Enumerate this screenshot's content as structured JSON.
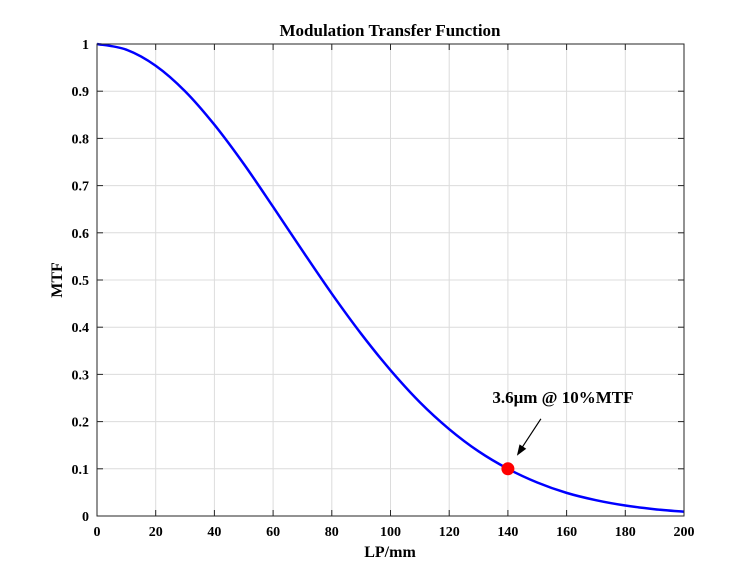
{
  "chart_data": {
    "type": "line",
    "title": "Modulation Transfer Function",
    "xlabel": "LP/mm",
    "ylabel": "MTF",
    "xlim": [
      0,
      200
    ],
    "ylim": [
      0,
      1
    ],
    "grid": true,
    "xticks": [
      0,
      20,
      40,
      60,
      80,
      100,
      120,
      140,
      160,
      180,
      200
    ],
    "yticks": [
      0,
      0.1,
      0.2,
      0.3,
      0.4,
      0.5,
      0.6,
      0.7,
      0.8,
      0.9,
      1
    ],
    "series": [
      {
        "name": "MTF",
        "color": "#0000ff",
        "x": [
          0,
          10,
          20,
          30,
          40,
          50,
          60,
          70,
          80,
          90,
          100,
          110,
          120,
          130,
          140,
          150,
          160,
          170,
          180,
          190,
          200
        ],
        "y": [
          1,
          0.988,
          0.954,
          0.9,
          0.829,
          0.746,
          0.655,
          0.562,
          0.471,
          0.386,
          0.309,
          0.241,
          0.184,
          0.137,
          0.1,
          0.071,
          0.049,
          0.0335,
          0.0222,
          0.0144,
          0.0091
        ]
      }
    ],
    "marker": {
      "x": 140,
      "y": 0.1,
      "color": "#ff0000"
    },
    "annotation": {
      "text": "3.6μm @ 10%MTF",
      "target": [
        140,
        0.1
      ]
    }
  }
}
